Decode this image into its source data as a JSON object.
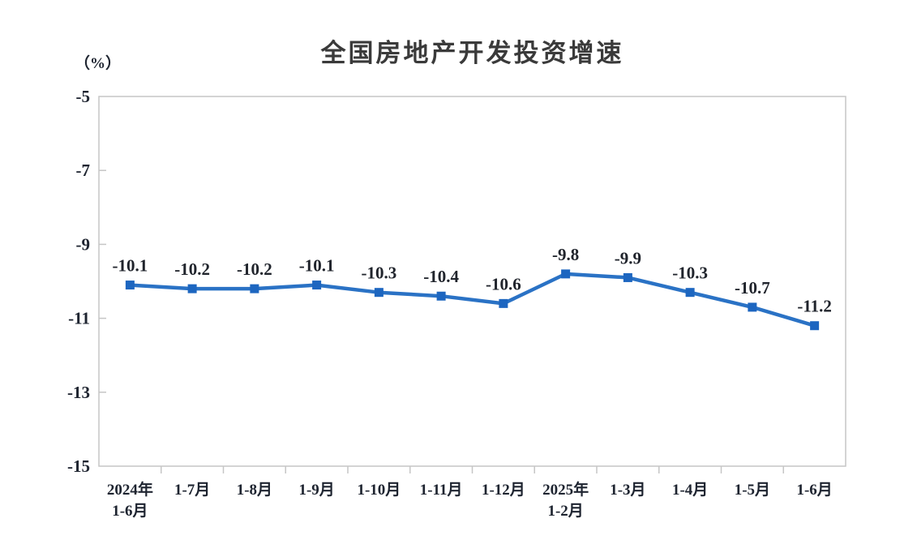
{
  "chart_data": {
    "type": "line",
    "title": "全国房地产开发投资增速",
    "unit_label": "（%）",
    "categories": [
      {
        "line1": "2024年",
        "line2": "1-6月"
      },
      {
        "line1": "1-7月",
        "line2": ""
      },
      {
        "line1": "1-8月",
        "line2": ""
      },
      {
        "line1": "1-9月",
        "line2": ""
      },
      {
        "line1": "1-10月",
        "line2": ""
      },
      {
        "line1": "1-11月",
        "line2": ""
      },
      {
        "line1": "1-12月",
        "line2": ""
      },
      {
        "line1": "2025年",
        "line2": "1-2月"
      },
      {
        "line1": "1-3月",
        "line2": ""
      },
      {
        "line1": "1-4月",
        "line2": ""
      },
      {
        "line1": "1-5月",
        "line2": ""
      },
      {
        "line1": "1-6月",
        "line2": ""
      }
    ],
    "values": [
      -10.1,
      -10.2,
      -10.2,
      -10.1,
      -10.3,
      -10.4,
      -10.6,
      -9.8,
      -9.9,
      -10.3,
      -10.7,
      -11.2
    ],
    "point_labels": [
      "-10.1",
      "-10.2",
      "-10.2",
      "-10.1",
      "-10.3",
      "-10.4",
      "-10.6",
      "-9.8",
      "-9.9",
      "-10.3",
      "-10.7",
      "-11.2"
    ],
    "ylim": [
      -15,
      -5
    ],
    "yticks": [
      -5,
      -7,
      -9,
      -11,
      -13,
      -15
    ],
    "grid": false,
    "legend": "none",
    "colors": {
      "line": "#2a72c5",
      "marker": "#1d66c0",
      "axis": "#c6c6c6",
      "tick_text": "#1e2430",
      "data_label_text": "#20242c",
      "title_text": "#3a3a3a"
    }
  }
}
